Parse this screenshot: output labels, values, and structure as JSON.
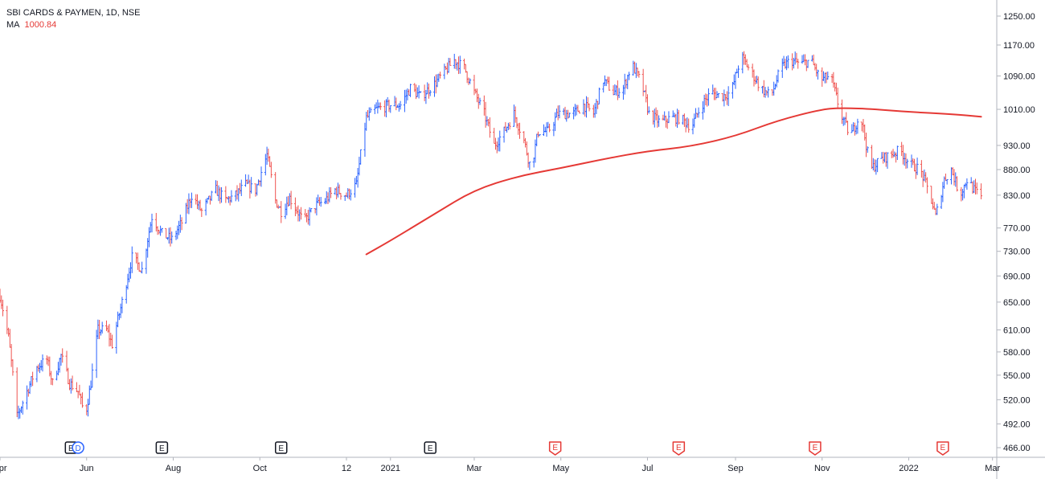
{
  "legend": {
    "symbol_line": "SBI CARDS & PAYMEN, 1D, NSE",
    "ma_label": "MA",
    "ma_value": "1000.84"
  },
  "colors": {
    "up": "#2962ff",
    "down": "#ef5350",
    "ma": "#e53935",
    "grid": "#e0e3eb",
    "text": "#131722",
    "earnings_past": "#131722",
    "earnings_future": "#e53935",
    "dividend": "#2962ff"
  },
  "chart_data": {
    "type": "ohlc",
    "title": "SBI CARDS & PAYMEN, 1D, NSE",
    "y_axis": {
      "scale": "log",
      "range": [
        455,
        1300
      ],
      "ticks": [
        466,
        492,
        520,
        550,
        580,
        610,
        650,
        690,
        730,
        770,
        830,
        880,
        930,
        1010,
        1090,
        1170,
        1250
      ],
      "tick_labels": [
        "466.00",
        "492.00",
        "520.00",
        "550.00",
        "580.00",
        "610.00",
        "650.00",
        "690.00",
        "730.00",
        "770.00",
        "830.00",
        "880.00",
        "930.00",
        "1010.00",
        "1090.00",
        "1170.00",
        "1250.00"
      ]
    },
    "x_axis": {
      "range": [
        "2020-04-01",
        "2022-03-04"
      ],
      "ticks": [
        {
          "date": "2020-04-01",
          "label": "Apr"
        },
        {
          "date": "2020-06-01",
          "label": "Jun"
        },
        {
          "date": "2020-08-01",
          "label": "Aug"
        },
        {
          "date": "2020-10-01",
          "label": "Oct"
        },
        {
          "date": "2020-12-01",
          "label": "12"
        },
        {
          "date": "2021-01-01",
          "label": "2021"
        },
        {
          "date": "2021-03-01",
          "label": "Mar"
        },
        {
          "date": "2021-05-01",
          "label": "May"
        },
        {
          "date": "2021-07-01",
          "label": "Jul"
        },
        {
          "date": "2021-09-01",
          "label": "Sep"
        },
        {
          "date": "2021-11-01",
          "label": "Nov"
        },
        {
          "date": "2022-01-01",
          "label": "2022"
        },
        {
          "date": "2022-03-01",
          "label": "Mar"
        }
      ]
    },
    "price_path": [
      [
        "2020-04-01",
        660
      ],
      [
        "2020-04-07",
        600
      ],
      [
        "2020-04-13",
        500
      ],
      [
        "2020-04-20",
        530
      ],
      [
        "2020-04-27",
        560
      ],
      [
        "2020-05-04",
        570
      ],
      [
        "2020-05-08",
        540
      ],
      [
        "2020-05-14",
        575
      ],
      [
        "2020-05-20",
        540
      ],
      [
        "2020-05-26",
        530
      ],
      [
        "2020-05-31",
        500
      ],
      [
        "2020-06-04",
        540
      ],
      [
        "2020-06-09",
        610
      ],
      [
        "2020-06-15",
        610
      ],
      [
        "2020-06-19",
        590
      ],
      [
        "2020-06-26",
        650
      ],
      [
        "2020-07-03",
        720
      ],
      [
        "2020-07-10",
        700
      ],
      [
        "2020-07-17",
        790
      ],
      [
        "2020-07-24",
        760
      ],
      [
        "2020-07-31",
        750
      ],
      [
        "2020-08-07",
        780
      ],
      [
        "2020-08-14",
        830
      ],
      [
        "2020-08-21",
        800
      ],
      [
        "2020-08-31",
        840
      ],
      [
        "2020-09-07",
        820
      ],
      [
        "2020-09-14",
        830
      ],
      [
        "2020-09-21",
        850
      ],
      [
        "2020-09-28",
        840
      ],
      [
        "2020-10-06",
        910
      ],
      [
        "2020-10-12",
        820
      ],
      [
        "2020-10-16",
        800
      ],
      [
        "2020-10-22",
        825
      ],
      [
        "2020-11-01",
        780
      ],
      [
        "2020-11-09",
        810
      ],
      [
        "2020-11-16",
        820
      ],
      [
        "2020-11-23",
        840
      ],
      [
        "2020-12-01",
        830
      ],
      [
        "2020-12-08",
        850
      ],
      [
        "2020-12-15",
        990
      ],
      [
        "2020-12-22",
        1010
      ],
      [
        "2021-01-01",
        1020
      ],
      [
        "2021-01-08",
        1020
      ],
      [
        "2021-01-15",
        1060
      ],
      [
        "2021-01-22",
        1040
      ],
      [
        "2021-02-01",
        1070
      ],
      [
        "2021-02-08",
        1100
      ],
      [
        "2021-02-15",
        1130
      ],
      [
        "2021-02-22",
        1110
      ],
      [
        "2021-03-01",
        1050
      ],
      [
        "2021-03-08",
        1000
      ],
      [
        "2021-03-15",
        930
      ],
      [
        "2021-03-22",
        960
      ],
      [
        "2021-03-29",
        1000
      ],
      [
        "2021-04-05",
        940
      ],
      [
        "2021-04-10",
        880
      ],
      [
        "2021-04-15",
        960
      ],
      [
        "2021-04-22",
        960
      ],
      [
        "2021-04-29",
        1000
      ],
      [
        "2021-05-10",
        1000
      ],
      [
        "2021-05-17",
        1020
      ],
      [
        "2021-05-24",
        1000
      ],
      [
        "2021-05-31",
        1080
      ],
      [
        "2021-06-07",
        1050
      ],
      [
        "2021-06-14",
        1060
      ],
      [
        "2021-06-20",
        1120
      ],
      [
        "2021-06-27",
        1070
      ],
      [
        "2021-07-02",
        1000
      ],
      [
        "2021-07-10",
        980
      ],
      [
        "2021-07-17",
        990
      ],
      [
        "2021-07-24",
        990
      ],
      [
        "2021-08-01",
        970
      ],
      [
        "2021-08-08",
        1020
      ],
      [
        "2021-08-15",
        1050
      ],
      [
        "2021-08-22",
        1040
      ],
      [
        "2021-08-29",
        1050
      ],
      [
        "2021-09-05",
        1140
      ],
      [
        "2021-09-12",
        1100
      ],
      [
        "2021-09-19",
        1060
      ],
      [
        "2021-09-26",
        1040
      ],
      [
        "2021-10-03",
        1110
      ],
      [
        "2021-10-10",
        1130
      ],
      [
        "2021-10-17",
        1120
      ],
      [
        "2021-10-24",
        1130
      ],
      [
        "2021-10-31",
        1080
      ],
      [
        "2021-11-07",
        1090
      ],
      [
        "2021-11-14",
        1000
      ],
      [
        "2021-11-21",
        950
      ],
      [
        "2021-11-28",
        1000
      ],
      [
        "2021-12-05",
        880
      ],
      [
        "2021-12-12",
        900
      ],
      [
        "2021-12-19",
        910
      ],
      [
        "2021-12-26",
        920
      ],
      [
        "2022-01-02",
        890
      ],
      [
        "2022-01-09",
        880
      ],
      [
        "2022-01-16",
        830
      ],
      [
        "2022-01-20",
        790
      ],
      [
        "2022-01-26",
        860
      ],
      [
        "2022-01-31",
        880
      ],
      [
        "2022-02-06",
        830
      ],
      [
        "2022-02-11",
        860
      ],
      [
        "2022-02-16",
        840
      ],
      [
        "2022-02-21",
        826
      ]
    ],
    "moving_average": [
      [
        "2020-12-15",
        725
      ],
      [
        "2021-01-01",
        748
      ],
      [
        "2021-02-01",
        795
      ],
      [
        "2021-03-01",
        840
      ],
      [
        "2021-04-01",
        867
      ],
      [
        "2021-05-01",
        883
      ],
      [
        "2021-06-01",
        902
      ],
      [
        "2021-07-01",
        918
      ],
      [
        "2021-08-01",
        928
      ],
      [
        "2021-09-01",
        950
      ],
      [
        "2021-10-01",
        985
      ],
      [
        "2021-11-01",
        1010
      ],
      [
        "2021-11-12",
        1013
      ],
      [
        "2021-12-01",
        1012
      ],
      [
        "2022-01-01",
        1004
      ],
      [
        "2022-02-01",
        999
      ],
      [
        "2022-02-21",
        993
      ]
    ],
    "events": [
      {
        "date": "2020-05-21",
        "label": "E",
        "kind": "earnings"
      },
      {
        "date": "2020-05-26",
        "label": "D",
        "kind": "dividend"
      },
      {
        "date": "2020-07-24",
        "label": "E",
        "kind": "earnings"
      },
      {
        "date": "2020-10-16",
        "label": "E",
        "kind": "earnings"
      },
      {
        "date": "2021-01-29",
        "label": "E",
        "kind": "earnings"
      },
      {
        "date": "2021-04-27",
        "label": "E",
        "kind": "earnings_upcoming"
      },
      {
        "date": "2021-07-23",
        "label": "E",
        "kind": "earnings_upcoming"
      },
      {
        "date": "2021-10-27",
        "label": "E",
        "kind": "earnings_upcoming"
      },
      {
        "date": "2022-01-25",
        "label": "E",
        "kind": "earnings_upcoming"
      }
    ]
  }
}
